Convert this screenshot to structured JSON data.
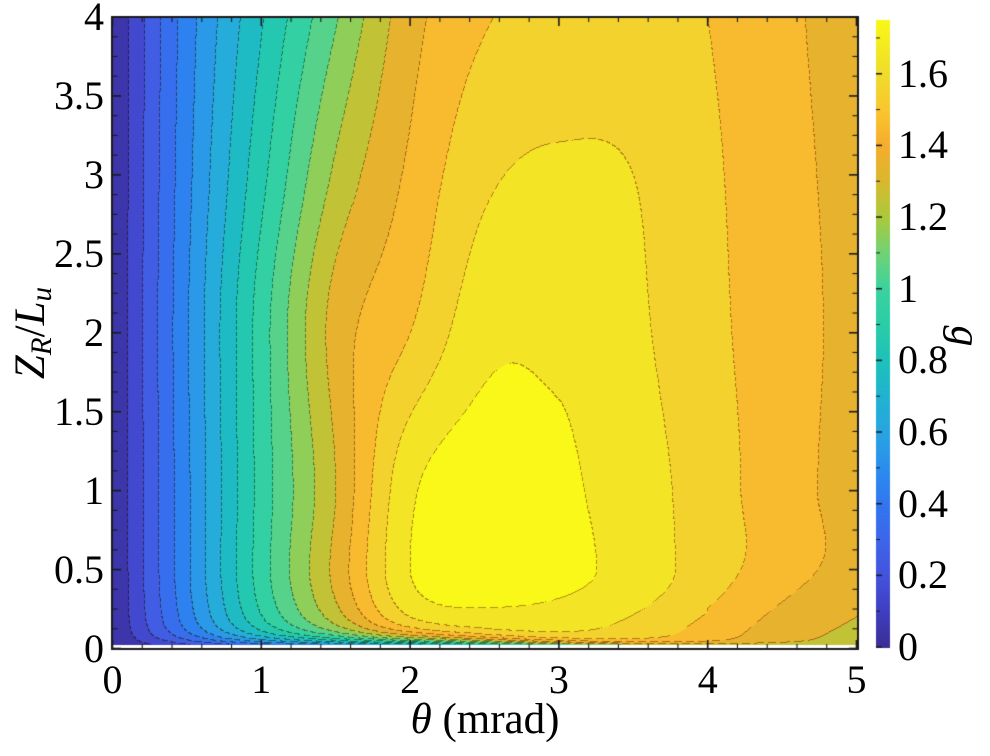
{
  "labels": {
    "x_symbol": "θ",
    "x_unit": " (mrad)",
    "y_numerator": "Z",
    "y_numerator_sub": "R",
    "y_slash": "/",
    "y_denominator": "L",
    "y_denominator_sub": "u",
    "colorbar": "g"
  },
  "chart_data": {
    "type": "filled_contour",
    "xlabel": "θ (mrad)",
    "ylabel": "Z_R/L_u",
    "colorbar_label": "g",
    "x_range": [
      0,
      5
    ],
    "y_range": [
      0,
      4
    ],
    "value_range": [
      0,
      1.75
    ],
    "x_ticks": [
      0,
      1,
      2,
      3,
      4,
      5
    ],
    "x_tick_labels": [
      "0",
      "1",
      "2",
      "3",
      "4",
      "5"
    ],
    "x_minor_step": 0.2,
    "y_ticks": [
      0,
      0.5,
      1,
      1.5,
      2,
      2.5,
      3,
      3.5,
      4
    ],
    "y_tick_labels": [
      "0",
      "0.5",
      "1",
      "1.5",
      "2",
      "2.5",
      "3",
      "3.5",
      "4"
    ],
    "y_minor_step": 0.125,
    "colorbar_ticks": [
      0,
      0.2,
      0.4,
      0.6,
      0.8,
      1,
      1.2,
      1.4,
      1.6
    ],
    "colorbar_tick_labels": [
      "0",
      "0.2",
      "0.4",
      "0.6",
      "0.8",
      "1",
      "1.2",
      "1.4",
      "1.6"
    ],
    "colorbar_minor_step": 0.1,
    "contour_level_step": 0.1,
    "contour_line_style": "dashed",
    "grid_lines": false,
    "colormap": {
      "name": "parula-like",
      "stops": [
        [
          0.0,
          "#3b2d96"
        ],
        [
          0.057,
          "#3f3fc0"
        ],
        [
          0.114,
          "#4453de"
        ],
        [
          0.171,
          "#3d66ea"
        ],
        [
          0.229,
          "#3177f0"
        ],
        [
          0.286,
          "#2b8eed"
        ],
        [
          0.343,
          "#28a5e2"
        ],
        [
          0.4,
          "#21b3d1"
        ],
        [
          0.457,
          "#1dc2ba"
        ],
        [
          0.514,
          "#2bcda7"
        ],
        [
          0.571,
          "#3bd2a0"
        ],
        [
          0.629,
          "#71d276"
        ],
        [
          0.686,
          "#abca3c"
        ],
        [
          0.743,
          "#d9b92f"
        ],
        [
          0.8,
          "#f6ad2d"
        ],
        [
          0.857,
          "#f9c72f"
        ],
        [
          0.914,
          "#f0dc2b"
        ],
        [
          1.0,
          "#f9f818"
        ]
      ]
    },
    "surface_grid": {
      "theta": [
        0,
        0.5,
        1,
        1.5,
        2,
        2.5,
        3,
        3.5,
        4,
        4.5,
        5
      ],
      "z": [
        0,
        0.5,
        1,
        2,
        3,
        4
      ],
      "g": [
        [
          0,
          0.44,
          0.87,
          1.22,
          1.56,
          1.61,
          1.59,
          1.53,
          1.43,
          1.32,
          1.25
        ],
        [
          0,
          0.48,
          0.95,
          1.33,
          1.7,
          1.75,
          1.73,
          1.66,
          1.55,
          1.44,
          1.36
        ],
        [
          0,
          0.48,
          0.94,
          1.3,
          1.68,
          1.75,
          1.72,
          1.65,
          1.55,
          1.44,
          1.36
        ],
        [
          0,
          0.49,
          0.95,
          1.34,
          1.5,
          1.67,
          1.68,
          1.62,
          1.53,
          1.44,
          1.37
        ],
        [
          0,
          0.47,
          0.87,
          1.22,
          1.42,
          1.58,
          1.615,
          1.6,
          1.52,
          1.43,
          1.37
        ],
        [
          0,
          0.45,
          0.79,
          1.09,
          1.36,
          1.49,
          1.54,
          1.55,
          1.5,
          1.42,
          1.36
        ]
      ]
    },
    "boundary_layer": {
      "model": "g_multiplier = 1 - exp(-z/s)",
      "s_base": 0.05,
      "s_formula": "s = s_base / (1 + 1.1*max(0,(theta-2)/1.1)^1.5)"
    },
    "peak": {
      "theta": 2.5,
      "z": 0.75,
      "g": 1.75
    }
  }
}
